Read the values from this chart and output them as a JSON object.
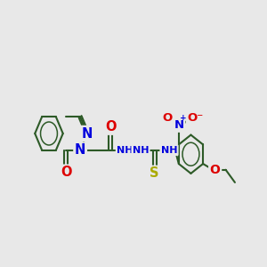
{
  "bg_color": "#e8e8e8",
  "bond_color": "#2d5a27",
  "bond_width": 1.5,
  "N_color": "#0000dd",
  "O_color": "#dd0000",
  "S_color": "#aaaa00",
  "font_size": 8.5,
  "fig_size": [
    3.0,
    3.0
  ],
  "dpi": 100,
  "xlim": [
    -0.5,
    10.5
  ],
  "ylim": [
    1.5,
    9.5
  ]
}
